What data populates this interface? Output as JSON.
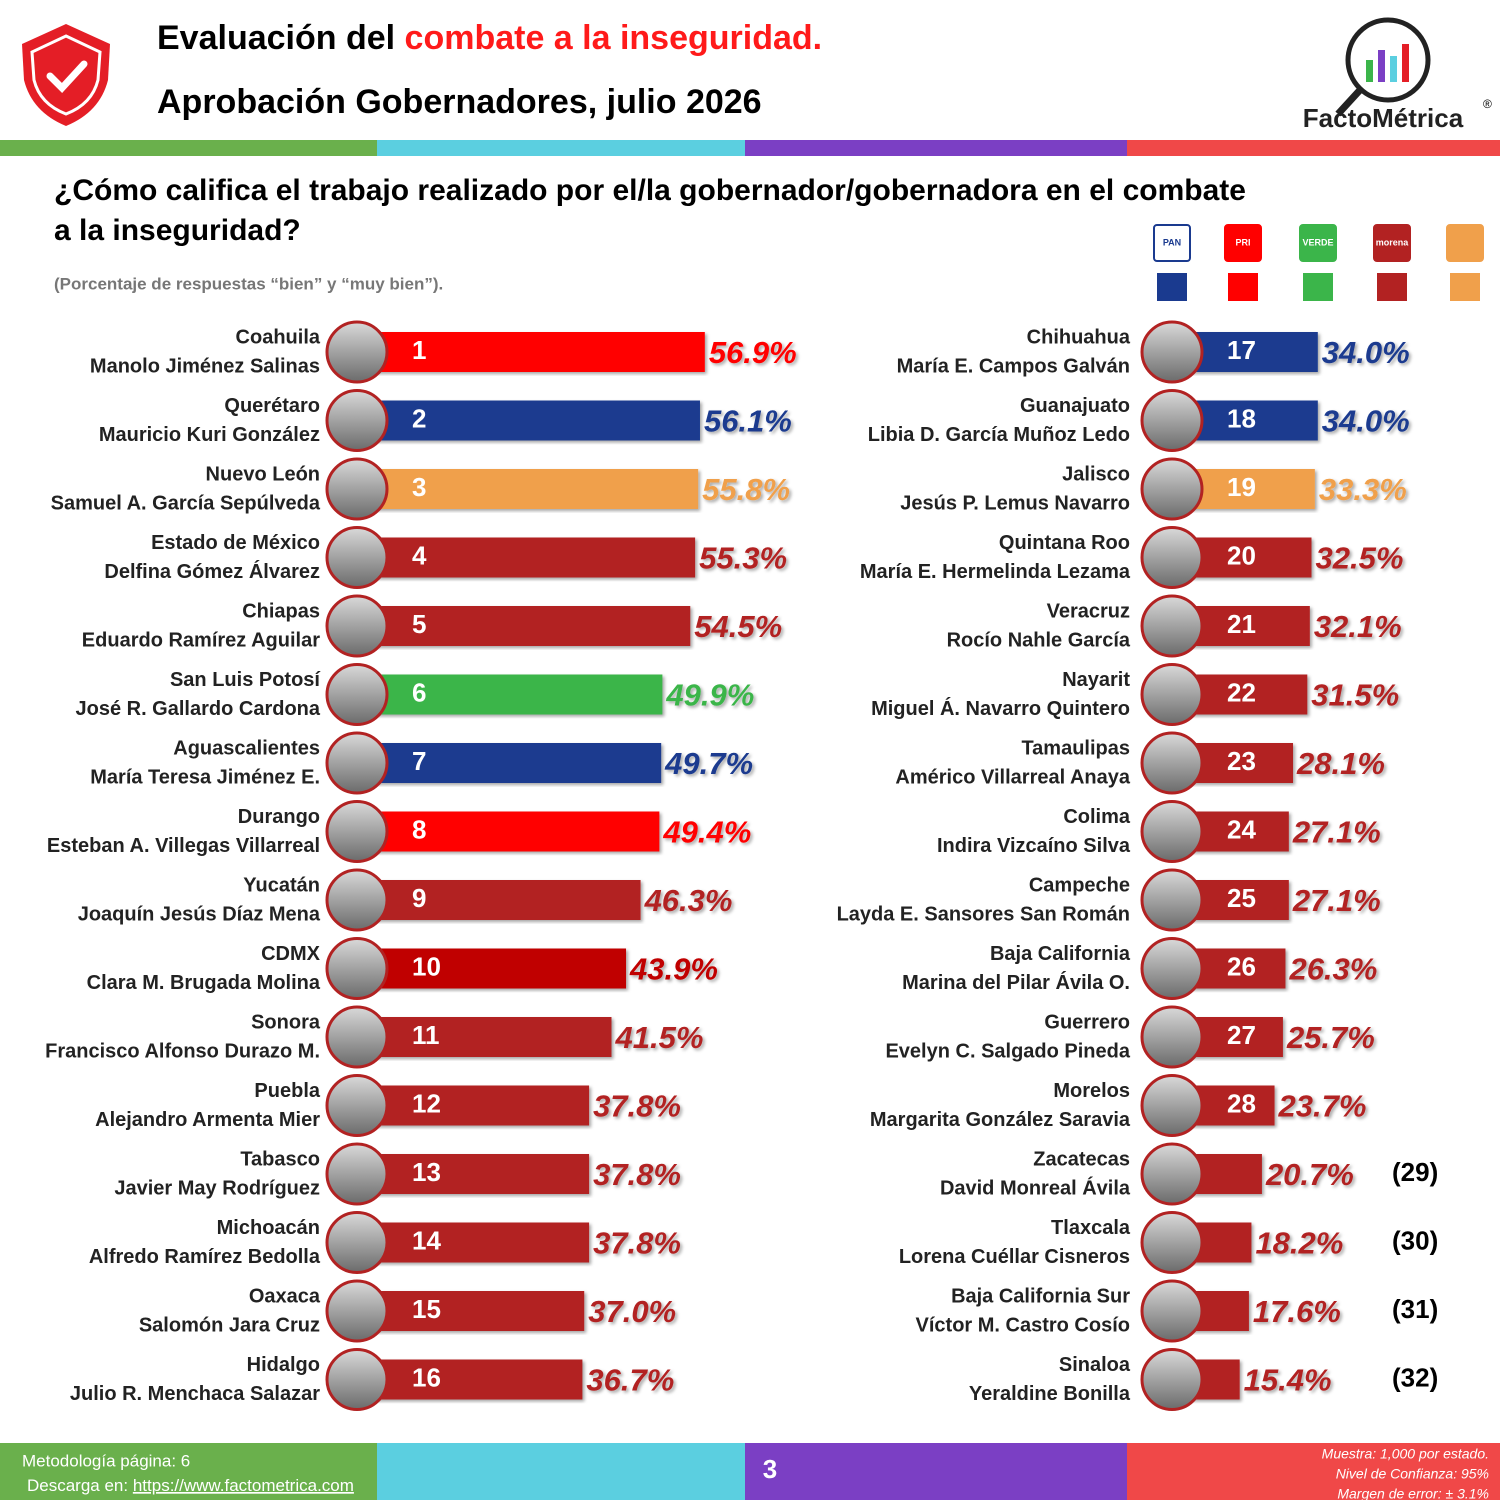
{
  "header": {
    "title_start": "Evaluación del ",
    "title_highlight": "combate a la inseguridad.",
    "subtitle": "Aprobación Gobernadores, julio 2026",
    "brand": "FactoMétrica",
    "question": [
      "¿Cómo califica el trabajo realizado por el/la gobernador/gobernadora en el combate",
      "a la inseguridad?"
    ],
    "note": "(Porcentaje de respuestas “bien” y “muy bien”)."
  },
  "legend": [
    {
      "label": "PAN",
      "color": "#1a3a8f"
    },
    {
      "label": "PRI",
      "color": "#ff0000"
    },
    {
      "label": "VERDE",
      "color": "#3bb54a"
    },
    {
      "label": "morena",
      "color": "#b22222"
    },
    {
      "color": "#f0a04b"
    }
  ],
  "chart_data": [
    {
      "type": "bar",
      "categories": [
        "Coahuila",
        "Querétaro",
        "Nuevo León",
        "Estado de México",
        "Chiapas",
        "San Luis Potosí",
        "Aguascalientes",
        "Durango",
        "Yucatán",
        "CDMX",
        "Sonora",
        "Puebla",
        "Tabasco",
        "Michoacán",
        "Oaxaca",
        "Hidalgo"
      ],
      "governors": [
        "Manolo Jiménez Salinas",
        "Mauricio Kuri González",
        "Samuel A. García Sepúlveda",
        "Delfina Gómez Álvarez",
        "Eduardo Ramírez Aguilar",
        "José R. Gallardo Cardona",
        "María Teresa Jiménez E.",
        "Esteban A. Villegas Villarreal",
        "Joaquín Jesús Díaz Mena",
        "Clara M. Brugada Molina",
        "Francisco Alfonso Durazo M.",
        "Alejandro Armenta Mier",
        "Javier May Rodríguez",
        "Alfredo Ramírez Bedolla",
        "Salomón Jara Cruz",
        "Julio R. Menchaca Salazar"
      ],
      "ranks": [
        1,
        2,
        3,
        4,
        5,
        6,
        7,
        8,
        9,
        10,
        11,
        12,
        13,
        14,
        15,
        16
      ],
      "values": [
        56.9,
        56.1,
        55.8,
        55.3,
        54.5,
        49.9,
        49.7,
        49.4,
        46.3,
        43.9,
        41.5,
        37.8,
        37.8,
        37.8,
        37.0,
        36.7
      ],
      "value_labels": [
        "56.9%",
        "56.1%",
        "55.8%",
        "55.3%",
        "54.5%",
        "49.9%",
        "49.7%",
        "49.4%",
        "46.3%",
        "43.9%",
        "41.5%",
        "37.8%",
        "37.8%",
        "37.8%",
        "37.0%",
        "36.7%"
      ],
      "colors": [
        "#ff0000",
        "#1a3a8f",
        "#f0a04b",
        "#b22222",
        "#b22222",
        "#3bb54a",
        "#1a3a8f",
        "#ff0000",
        "#b22222",
        "#c00000",
        "#b22222",
        "#b22222",
        "#b22222",
        "#b22222",
        "#b22222",
        "#b22222"
      ]
    },
    {
      "type": "bar",
      "categories": [
        "Chihuahua",
        "Guanajuato",
        "Jalisco",
        "Quintana Roo",
        "Veracruz",
        "Nayarit",
        "Tamaulipas",
        "Colima",
        "Campeche",
        "Baja California",
        "Guerrero",
        "Morelos",
        "Zacatecas",
        "Tlaxcala",
        "Baja California Sur",
        "Sinaloa"
      ],
      "governors": [
        "María E. Campos Galván",
        "Libia D. García Muñoz Ledo",
        "Jesús P. Lemus Navarro",
        "María E. Hermelinda Lezama",
        "Rocío Nahle García",
        "Miguel Á. Navarro Quintero",
        "Américo Villarreal Anaya",
        "Indira Vizcaíno Silva",
        "Layda E. Sansores San Román",
        "Marina del Pilar Ávila O.",
        "Evelyn C. Salgado Pineda",
        "Margarita González Saravia",
        "David Monreal Ávila",
        "Lorena Cuéllar Cisneros",
        "Víctor M. Castro Cosío",
        "Yeraldine Bonilla"
      ],
      "ranks": [
        17,
        18,
        19,
        20,
        21,
        22,
        23,
        24,
        25,
        26,
        27,
        28,
        {
          "value": 29,
          "label": "(29)"
        },
        {
          "value": 30,
          "label": "(30)"
        },
        {
          "value": 31,
          "label": "(31)"
        },
        {
          "value": 32,
          "label": "(32)"
        }
      ],
      "values": [
        34.0,
        34.0,
        33.3,
        32.5,
        32.1,
        31.5,
        28.1,
        27.1,
        27.1,
        26.3,
        25.7,
        23.7,
        20.7,
        18.2,
        17.6,
        15.4
      ],
      "value_labels": [
        "34.0%",
        "34.0%",
        "33.3%",
        "32.5%",
        "32.1%",
        "31.5%",
        "28.1%",
        "27.1%",
        "27.1%",
        "26.3%",
        "25.7%",
        "23.7%",
        "20.7%",
        "18.2%",
        "17.6%",
        "15.4%"
      ],
      "colors": [
        "#1a3a8f",
        "#1a3a8f",
        "#f0a04b",
        "#b22222",
        "#b22222",
        "#b22222",
        "#b22222",
        "#b22222",
        "#b22222",
        "#b22222",
        "#b22222",
        "#b22222",
        "#b22222",
        "#b22222",
        "#b22222",
        "#b22222"
      ]
    }
  ],
  "footer": {
    "method": "Metodología página: 6",
    "download": "Descarga en: ",
    "url": "https://www.factometrica.com",
    "page": "3",
    "sample": [
      "Muestra:  1,000 por estado.",
      "Nivel de Confianza: 95%",
      "Margen de error: ± 3.1%"
    ]
  }
}
